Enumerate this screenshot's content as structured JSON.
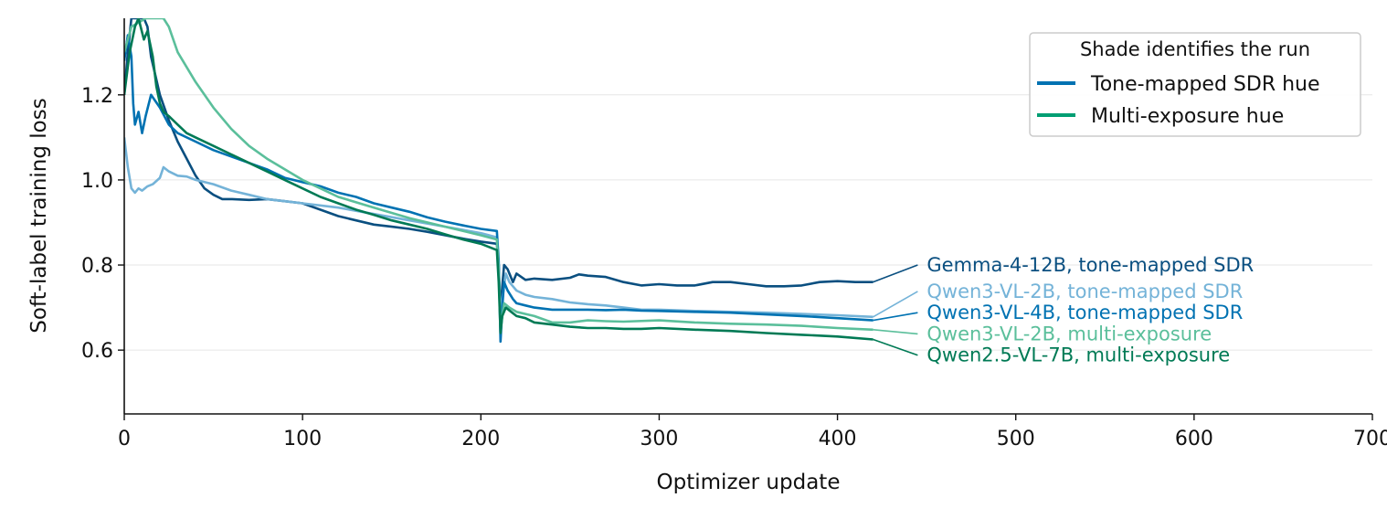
{
  "chart_data": {
    "type": "line",
    "title": "",
    "xlabel": "Optimizer update",
    "ylabel": "Soft-label training loss",
    "xlim": [
      0,
      700
    ],
    "ylim": [
      0.45,
      1.38
    ],
    "xticks": [
      0,
      100,
      200,
      300,
      400,
      500,
      600,
      700
    ],
    "xtick_labels": [
      "0",
      "100",
      "200",
      "300",
      "400",
      "500",
      "600",
      "700"
    ],
    "yticks": [
      0.6,
      0.8,
      1.0,
      1.2
    ],
    "ytick_labels": [
      "0.6",
      "0.8",
      "1.0",
      "1.2"
    ],
    "grid": "horizontal",
    "legend": {
      "title": "Shade identifies the run",
      "placement": "top-right",
      "entries": [
        {
          "label": "Tone-mapped SDR hue",
          "color": "#0072b2"
        },
        {
          "label": "Multi-exposure hue",
          "color": "#009e73"
        }
      ]
    },
    "series": [
      {
        "name": "Gemma-4-12B, tone-mapped SDR",
        "color": "#0a4f80",
        "points": [
          [
            0,
            1.2
          ],
          [
            2,
            1.3
          ],
          [
            4,
            1.38
          ],
          [
            8,
            1.38
          ],
          [
            11,
            1.38
          ],
          [
            13,
            1.36
          ],
          [
            15,
            1.29
          ],
          [
            20,
            1.2
          ],
          [
            25,
            1.14
          ],
          [
            30,
            1.09
          ],
          [
            35,
            1.05
          ],
          [
            40,
            1.01
          ],
          [
            45,
            0.98
          ],
          [
            50,
            0.965
          ],
          [
            55,
            0.955
          ],
          [
            60,
            0.955
          ],
          [
            70,
            0.953
          ],
          [
            80,
            0.955
          ],
          [
            90,
            0.95
          ],
          [
            100,
            0.945
          ],
          [
            110,
            0.93
          ],
          [
            120,
            0.915
          ],
          [
            130,
            0.905
          ],
          [
            140,
            0.895
          ],
          [
            150,
            0.89
          ],
          [
            160,
            0.885
          ],
          [
            170,
            0.878
          ],
          [
            180,
            0.87
          ],
          [
            190,
            0.862
          ],
          [
            200,
            0.855
          ],
          [
            209,
            0.85
          ],
          [
            210,
            0.8
          ],
          [
            211,
            0.68
          ],
          [
            212,
            0.75
          ],
          [
            213,
            0.8
          ],
          [
            215,
            0.79
          ],
          [
            218,
            0.76
          ],
          [
            220,
            0.78
          ],
          [
            225,
            0.765
          ],
          [
            230,
            0.768
          ],
          [
            240,
            0.765
          ],
          [
            250,
            0.77
          ],
          [
            255,
            0.778
          ],
          [
            260,
            0.775
          ],
          [
            270,
            0.772
          ],
          [
            280,
            0.76
          ],
          [
            290,
            0.752
          ],
          [
            300,
            0.755
          ],
          [
            310,
            0.752
          ],
          [
            320,
            0.752
          ],
          [
            330,
            0.76
          ],
          [
            340,
            0.76
          ],
          [
            350,
            0.755
          ],
          [
            360,
            0.75
          ],
          [
            370,
            0.75
          ],
          [
            380,
            0.752
          ],
          [
            390,
            0.76
          ],
          [
            400,
            0.762
          ],
          [
            410,
            0.76
          ],
          [
            420,
            0.76
          ]
        ],
        "end_label": "Gemma-4-12B, tone-mapped SDR",
        "label_y": 0.8
      },
      {
        "name": "Qwen3-VL-2B, tone-mapped SDR",
        "color": "#74b3d8",
        "points": [
          [
            0,
            1.1
          ],
          [
            2,
            1.03
          ],
          [
            4,
            0.98
          ],
          [
            6,
            0.97
          ],
          [
            8,
            0.98
          ],
          [
            10,
            0.975
          ],
          [
            13,
            0.985
          ],
          [
            16,
            0.99
          ],
          [
            20,
            1.005
          ],
          [
            22,
            1.03
          ],
          [
            25,
            1.02
          ],
          [
            30,
            1.01
          ],
          [
            35,
            1.008
          ],
          [
            40,
            1.0
          ],
          [
            50,
            0.99
          ],
          [
            60,
            0.975
          ],
          [
            70,
            0.965
          ],
          [
            80,
            0.955
          ],
          [
            90,
            0.95
          ],
          [
            100,
            0.945
          ],
          [
            120,
            0.935
          ],
          [
            140,
            0.92
          ],
          [
            160,
            0.905
          ],
          [
            180,
            0.89
          ],
          [
            200,
            0.875
          ],
          [
            209,
            0.865
          ],
          [
            210,
            0.8
          ],
          [
            211,
            0.66
          ],
          [
            212,
            0.72
          ],
          [
            214,
            0.78
          ],
          [
            216,
            0.76
          ],
          [
            220,
            0.74
          ],
          [
            225,
            0.73
          ],
          [
            230,
            0.725
          ],
          [
            240,
            0.72
          ],
          [
            250,
            0.712
          ],
          [
            260,
            0.708
          ],
          [
            270,
            0.705
          ],
          [
            280,
            0.7
          ],
          [
            290,
            0.695
          ],
          [
            300,
            0.695
          ],
          [
            320,
            0.692
          ],
          [
            340,
            0.69
          ],
          [
            360,
            0.688
          ],
          [
            380,
            0.685
          ],
          [
            400,
            0.682
          ],
          [
            420,
            0.678
          ]
        ],
        "end_label": "Qwen3-VL-2B, tone-mapped SDR",
        "label_y": 0.738
      },
      {
        "name": "Qwen3-VL-4B, tone-mapped SDR",
        "color": "#0072b2",
        "points": [
          [
            0,
            1.28
          ],
          [
            2,
            1.34
          ],
          [
            4,
            1.29
          ],
          [
            5,
            1.18
          ],
          [
            6,
            1.13
          ],
          [
            8,
            1.16
          ],
          [
            10,
            1.11
          ],
          [
            12,
            1.15
          ],
          [
            15,
            1.2
          ],
          [
            20,
            1.17
          ],
          [
            25,
            1.13
          ],
          [
            30,
            1.11
          ],
          [
            40,
            1.09
          ],
          [
            50,
            1.07
          ],
          [
            60,
            1.055
          ],
          [
            70,
            1.04
          ],
          [
            80,
            1.025
          ],
          [
            90,
            1.005
          ],
          [
            100,
            0.995
          ],
          [
            110,
            0.985
          ],
          [
            120,
            0.97
          ],
          [
            130,
            0.96
          ],
          [
            140,
            0.945
          ],
          [
            150,
            0.935
          ],
          [
            160,
            0.925
          ],
          [
            170,
            0.912
          ],
          [
            180,
            0.902
          ],
          [
            190,
            0.893
          ],
          [
            200,
            0.885
          ],
          [
            209,
            0.88
          ],
          [
            210,
            0.81
          ],
          [
            211,
            0.62
          ],
          [
            212,
            0.7
          ],
          [
            213,
            0.76
          ],
          [
            215,
            0.74
          ],
          [
            218,
            0.72
          ],
          [
            220,
            0.71
          ],
          [
            225,
            0.705
          ],
          [
            230,
            0.7
          ],
          [
            240,
            0.695
          ],
          [
            250,
            0.695
          ],
          [
            260,
            0.695
          ],
          [
            270,
            0.694
          ],
          [
            280,
            0.695
          ],
          [
            290,
            0.693
          ],
          [
            300,
            0.692
          ],
          [
            320,
            0.69
          ],
          [
            340,
            0.688
          ],
          [
            360,
            0.684
          ],
          [
            380,
            0.68
          ],
          [
            400,
            0.675
          ],
          [
            420,
            0.67
          ]
        ],
        "end_label": "Qwen3-VL-4B, tone-mapped SDR",
        "label_y": 0.688
      },
      {
        "name": "Qwen3-VL-2B, multi-exposure",
        "color": "#5bbf9b",
        "points": [
          [
            0,
            1.3
          ],
          [
            4,
            1.36
          ],
          [
            8,
            1.37
          ],
          [
            12,
            1.38
          ],
          [
            22,
            1.38
          ],
          [
            25,
            1.36
          ],
          [
            30,
            1.3
          ],
          [
            40,
            1.23
          ],
          [
            50,
            1.17
          ],
          [
            60,
            1.12
          ],
          [
            70,
            1.08
          ],
          [
            80,
            1.05
          ],
          [
            90,
            1.025
          ],
          [
            100,
            1.0
          ],
          [
            110,
            0.98
          ],
          [
            120,
            0.96
          ],
          [
            140,
            0.935
          ],
          [
            160,
            0.91
          ],
          [
            180,
            0.89
          ],
          [
            200,
            0.87
          ],
          [
            209,
            0.86
          ],
          [
            210,
            0.79
          ],
          [
            211,
            0.65
          ],
          [
            213,
            0.71
          ],
          [
            216,
            0.7
          ],
          [
            220,
            0.69
          ],
          [
            225,
            0.685
          ],
          [
            230,
            0.68
          ],
          [
            240,
            0.665
          ],
          [
            250,
            0.665
          ],
          [
            260,
            0.67
          ],
          [
            270,
            0.668
          ],
          [
            280,
            0.667
          ],
          [
            300,
            0.67
          ],
          [
            320,
            0.665
          ],
          [
            340,
            0.662
          ],
          [
            360,
            0.66
          ],
          [
            380,
            0.657
          ],
          [
            400,
            0.652
          ],
          [
            420,
            0.648
          ]
        ],
        "end_label": "Qwen3-VL-2B, multi-exposure",
        "label_y": 0.638
      },
      {
        "name": "Qwen2.5-VL-7B, multi-exposure",
        "color": "#007a55",
        "points": [
          [
            0,
            1.2
          ],
          [
            3,
            1.3
          ],
          [
            6,
            1.36
          ],
          [
            8,
            1.38
          ],
          [
            11,
            1.33
          ],
          [
            13,
            1.35
          ],
          [
            16,
            1.29
          ],
          [
            18,
            1.22
          ],
          [
            20,
            1.18
          ],
          [
            22,
            1.16
          ],
          [
            25,
            1.15
          ],
          [
            30,
            1.13
          ],
          [
            35,
            1.11
          ],
          [
            40,
            1.1
          ],
          [
            50,
            1.08
          ],
          [
            60,
            1.06
          ],
          [
            70,
            1.04
          ],
          [
            80,
            1.02
          ],
          [
            90,
            1.0
          ],
          [
            100,
            0.98
          ],
          [
            110,
            0.96
          ],
          [
            120,
            0.945
          ],
          [
            130,
            0.93
          ],
          [
            140,
            0.918
          ],
          [
            150,
            0.905
          ],
          [
            160,
            0.895
          ],
          [
            170,
            0.885
          ],
          [
            180,
            0.872
          ],
          [
            190,
            0.86
          ],
          [
            200,
            0.85
          ],
          [
            209,
            0.835
          ],
          [
            210,
            0.76
          ],
          [
            211,
            0.64
          ],
          [
            212,
            0.68
          ],
          [
            214,
            0.7
          ],
          [
            217,
            0.69
          ],
          [
            220,
            0.68
          ],
          [
            225,
            0.675
          ],
          [
            230,
            0.665
          ],
          [
            240,
            0.66
          ],
          [
            250,
            0.655
          ],
          [
            260,
            0.652
          ],
          [
            270,
            0.652
          ],
          [
            280,
            0.65
          ],
          [
            290,
            0.65
          ],
          [
            300,
            0.652
          ],
          [
            320,
            0.648
          ],
          [
            340,
            0.645
          ],
          [
            360,
            0.64
          ],
          [
            380,
            0.636
          ],
          [
            400,
            0.632
          ],
          [
            420,
            0.625
          ]
        ],
        "end_label": "Qwen2.5-VL-7B, multi-exposure",
        "label_y": 0.588
      }
    ]
  }
}
